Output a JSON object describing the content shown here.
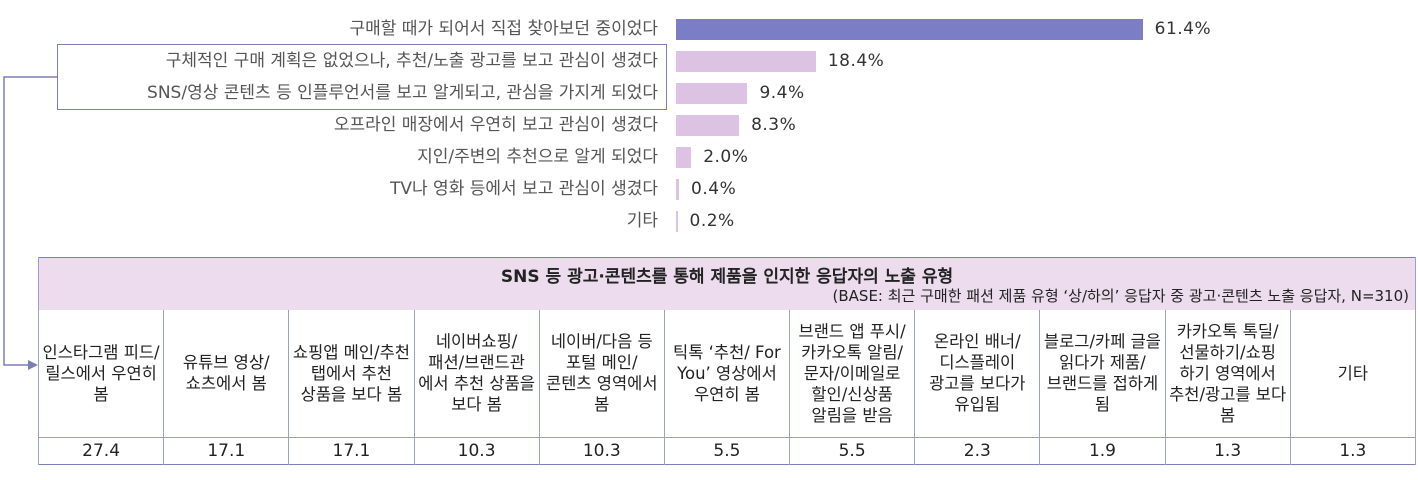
{
  "chart_data": [
    {
      "type": "bar",
      "orientation": "horizontal",
      "categories": [
        "구매할 때가 되어서 직접 찾아보던 중이었다",
        "구체적인 구매 계획은 없었으나, 추천/노출 광고를 보고 관심이 생겼다",
        "SNS/영상 콘텐츠 등 인플루언서를 보고 알게되고, 관심을 가지게 되었다",
        "오프라인 매장에서 우연히 보고 관심이 생겼다",
        "지인/주변의 추천으로 알게 되었다",
        "TV나 영화 등에서 보고 관심이 생겼다",
        "기타"
      ],
      "values": [
        61.4,
        18.4,
        9.4,
        8.3,
        2.0,
        0.4,
        0.2
      ],
      "value_labels": [
        "61.4%",
        "18.4%",
        "9.4%",
        "8.3%",
        "2.0%",
        "0.4%",
        "0.2%"
      ],
      "colors": [
        "#7b7ec4",
        "#dcc3e4",
        "#dcc3e4",
        "#dcc3e4",
        "#dcc3e4",
        "#dcc3e4",
        "#dcc3e4"
      ],
      "highlighted": [
        1,
        2
      ],
      "highlight_color": "#7b7fb5",
      "xlim": [
        0,
        100
      ]
    },
    {
      "type": "table",
      "title": "SNS 등 광고·콘텐츠를 통해 제품을 인지한 응답자의 노출 유형",
      "base_note": "(BASE: 최근 구매한 패션 제품 유형 ‘상/하의’ 응답자 중 광고·콘텐츠 노출 응답자, N=310)",
      "columns": [
        "인스타그램 피드/릴스에서 우연히 봄",
        "유튜브 영상/ 쇼츠에서 봄",
        "쇼핑앱 메인/추천 탭에서 추천 상품을 보다 봄",
        "네이버쇼핑/ 패션/브랜드관 에서 추천 상품을 보다 봄",
        "네이버/다음 등 포털 메인/ 콘텐츠 영역에서 봄",
        "틱톡 ‘추천/ For You’ 영상에서 우연히 봄",
        "브랜드 앱 푸시/ 카카오톡 알림/ 문자/이메일로 할인/신상품 알림을 받음",
        "온라인 배너/ 디스플레이 광고를 보다가 유입됨",
        "블로그/카페 글을 읽다가 제품/브랜드를 접하게 됨",
        "카카오톡 톡딜/ 선물하기/쇼핑 하기 영역에서 추천/광고를 보다 봄",
        "기타"
      ],
      "values": [
        "27.4",
        "17.1",
        "17.1",
        "10.3",
        "10.3",
        "5.5",
        "5.5",
        "2.3",
        "1.9",
        "1.3",
        "1.3"
      ],
      "header_color": "#ecdcee",
      "border_color": "#7b7fb5"
    }
  ]
}
